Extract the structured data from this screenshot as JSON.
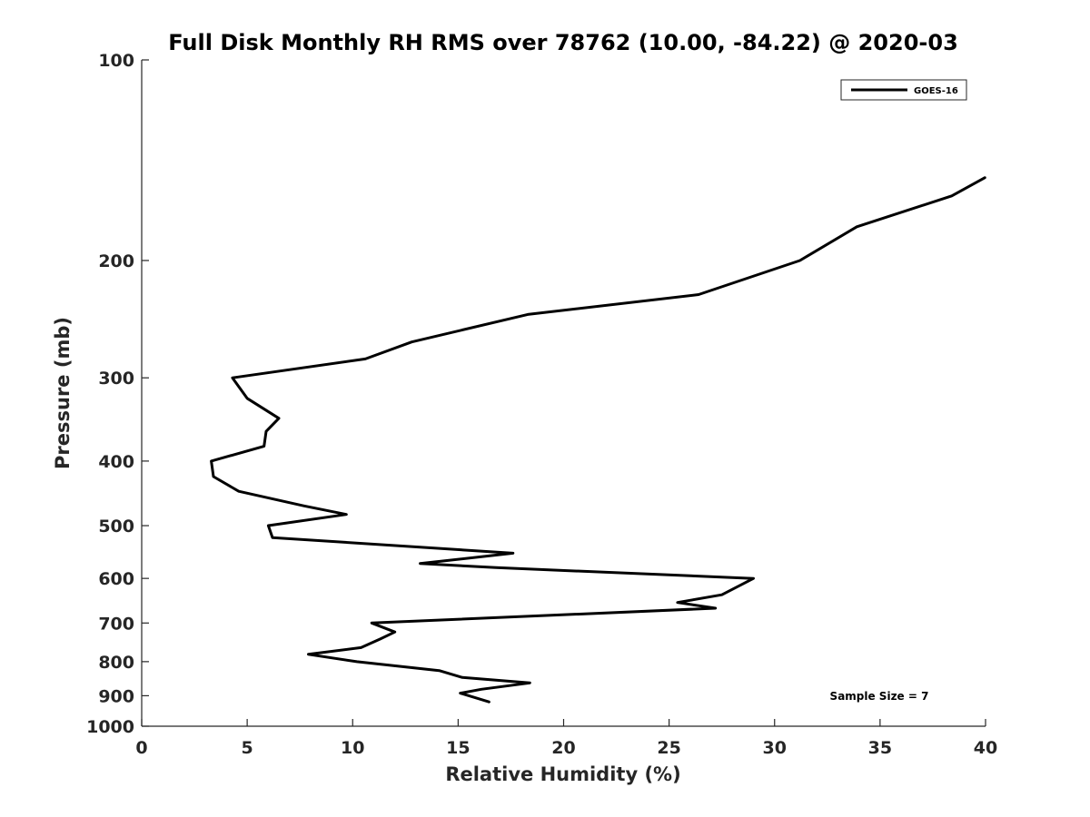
{
  "chart_data": {
    "type": "line",
    "title": "Full Disk Monthly RH RMS over 78762 (10.00, -84.22) @ 2020-03",
    "xlabel": "Relative Humidity (%)",
    "ylabel": "Pressure (mb)",
    "xlim": [
      0,
      40
    ],
    "ylim": [
      100,
      1000
    ],
    "y_scale": "log",
    "y_reversed": true,
    "x_ticks": [
      0,
      5,
      10,
      15,
      20,
      25,
      30,
      35,
      40
    ],
    "y_ticks": [
      100,
      200,
      300,
      400,
      500,
      600,
      700,
      800,
      900,
      1000
    ],
    "grid": false,
    "legend_location": "top-right",
    "annotation": "Sample Size = 7",
    "series": [
      {
        "name": "GOES-16",
        "color": "#000000",
        "points": [
          [
            40.0,
            150
          ],
          [
            38.4,
            160
          ],
          [
            33.9,
            178
          ],
          [
            31.2,
            200
          ],
          [
            26.4,
            225
          ],
          [
            18.3,
            241
          ],
          [
            12.8,
            265
          ],
          [
            10.6,
            281
          ],
          [
            4.3,
            300
          ],
          [
            5.0,
            322
          ],
          [
            6.5,
            345
          ],
          [
            5.9,
            361
          ],
          [
            5.8,
            380
          ],
          [
            3.3,
            400
          ],
          [
            3.4,
            422
          ],
          [
            4.6,
            444
          ],
          [
            7.7,
            467
          ],
          [
            9.7,
            481
          ],
          [
            6.0,
            500
          ],
          [
            6.2,
            521
          ],
          [
            17.6,
            550
          ],
          [
            13.2,
            570
          ],
          [
            16.8,
            578
          ],
          [
            29.0,
            600
          ],
          [
            27.5,
            635
          ],
          [
            25.4,
            652
          ],
          [
            27.2,
            665
          ],
          [
            10.9,
            700
          ],
          [
            12.0,
            722
          ],
          [
            11.3,
            740
          ],
          [
            10.4,
            762
          ],
          [
            7.9,
            780
          ],
          [
            10.2,
            800
          ],
          [
            14.1,
            825
          ],
          [
            15.2,
            845
          ],
          [
            18.4,
            861
          ],
          [
            16.1,
            880
          ],
          [
            15.1,
            892
          ],
          [
            16.5,
            920
          ]
        ]
      }
    ]
  }
}
